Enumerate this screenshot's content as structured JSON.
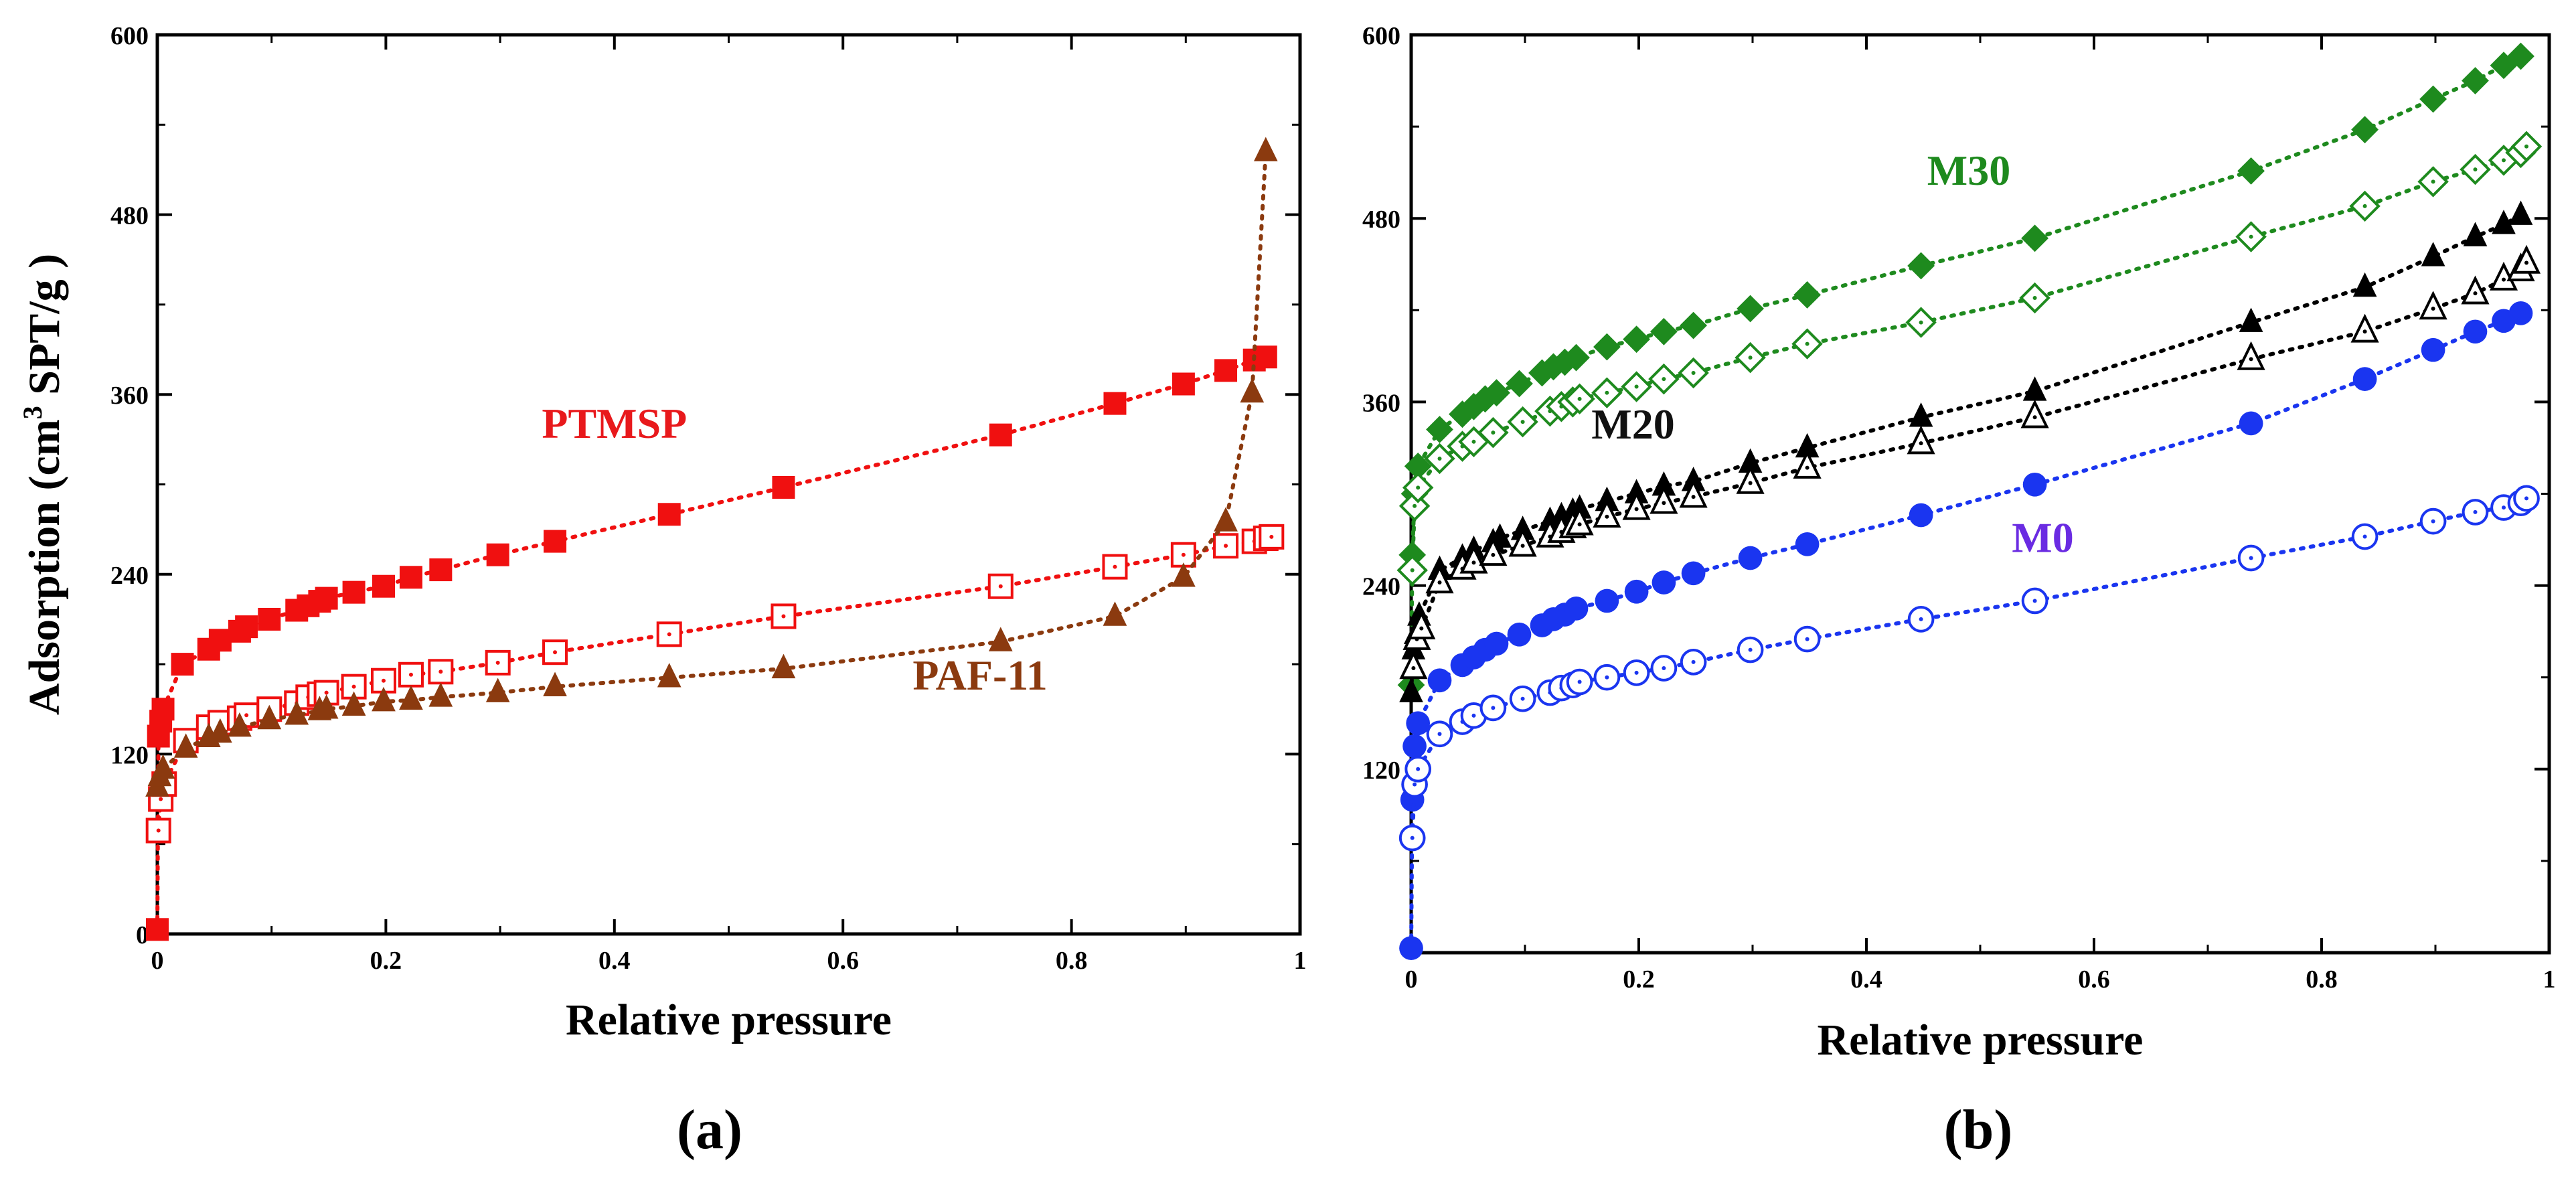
{
  "chart_data": [
    {
      "type": "scatter",
      "panel_label": "(a)",
      "xlabel": "Relative pressure",
      "ylabel_main": "Adsorption (cm",
      "ylabel_sup": "3",
      "ylabel_end": " SPT/g )",
      "xlim": [
        0,
        1
      ],
      "ylim": [
        0,
        600
      ],
      "x_ticks": [
        "0",
        "0.2",
        "0.4",
        "0.6",
        "0.8",
        "1"
      ],
      "y_ticks": [
        "0",
        "120",
        "240",
        "360",
        "480",
        "600"
      ],
      "grid": false,
      "labels": [
        {
          "text": "PTMSP",
          "color": "#e8191c",
          "x": 0.4,
          "y": 331
        },
        {
          "text": "PAF-11",
          "color": "#8b3a0f",
          "x": 0.72,
          "y": 163
        }
      ],
      "series": [
        {
          "marker": "square-filled",
          "color": "#f01010",
          "x": [
            0.0,
            0.001,
            0.003,
            0.005,
            0.022,
            0.045,
            0.055,
            0.072,
            0.078,
            0.098,
            0.122,
            0.132,
            0.142,
            0.148,
            0.172,
            0.198,
            0.222,
            0.248,
            0.298,
            0.348,
            0.448,
            0.548,
            0.738,
            0.838,
            0.898,
            0.935,
            0.96,
            0.97
          ],
          "y": [
            3,
            132,
            142,
            150,
            180,
            190,
            196,
            202,
            205,
            210,
            216,
            219,
            222,
            224,
            228,
            232,
            238,
            243,
            253,
            262,
            280,
            298,
            333,
            354,
            367,
            376,
            383,
            385
          ]
        },
        {
          "marker": "square-open",
          "color": "#f01010",
          "x": [
            0.001,
            0.003,
            0.006,
            0.025,
            0.045,
            0.055,
            0.072,
            0.078,
            0.098,
            0.122,
            0.132,
            0.142,
            0.148,
            0.172,
            0.198,
            0.222,
            0.248,
            0.298,
            0.348,
            0.448,
            0.548,
            0.738,
            0.838,
            0.898,
            0.935,
            0.96,
            0.97,
            0.975
          ],
          "y": [
            69,
            90,
            100,
            129,
            138,
            141,
            144,
            146,
            150,
            154,
            158,
            160,
            161,
            165,
            169,
            173,
            175,
            181,
            188,
            200,
            212,
            232,
            245,
            253,
            259,
            262,
            264,
            265
          ]
        },
        {
          "marker": "triangle-filled",
          "color": "#8b3a0f",
          "x": [
            0.0,
            0.002,
            0.005,
            0.025,
            0.045,
            0.055,
            0.072,
            0.098,
            0.122,
            0.142,
            0.148,
            0.172,
            0.198,
            0.222,
            0.248,
            0.298,
            0.348,
            0.448,
            0.548,
            0.738,
            0.838,
            0.898,
            0.935,
            0.958,
            0.97
          ],
          "y": [
            98,
            105,
            110,
            124,
            131,
            134,
            138,
            143,
            146,
            149,
            150,
            152,
            155,
            156,
            158,
            161,
            165,
            171,
            177,
            195,
            212,
            238,
            275,
            361,
            522
          ]
        }
      ]
    },
    {
      "type": "scatter",
      "panel_label": "(b)",
      "xlabel": "Relative pressure",
      "xlim": [
        0,
        1
      ],
      "ylim": [
        0,
        600
      ],
      "x_ticks": [
        "0",
        "0.2",
        "0.4",
        "0.6",
        "0.8",
        "1"
      ],
      "y_ticks": [
        "120",
        "240",
        "360",
        "480",
        "600"
      ],
      "grid": false,
      "labels": [
        {
          "text": "M30",
          "color": "#1e8a1e",
          "x": 0.49,
          "y": 502
        },
        {
          "text": "M20",
          "color": "#111111",
          "x": 0.195,
          "y": 336
        },
        {
          "text": "M0",
          "color": "#6a2be2",
          "x": 0.555,
          "y": 262
        }
      ],
      "series": [
        {
          "marker": "diamond-filled",
          "color": "#1e8a1e",
          "x": [
            0.0,
            0.001,
            0.003,
            0.006,
            0.025,
            0.045,
            0.055,
            0.065,
            0.075,
            0.095,
            0.115,
            0.125,
            0.135,
            0.145,
            0.172,
            0.198,
            0.222,
            0.248,
            0.298,
            0.348,
            0.448,
            0.548,
            0.738,
            0.838,
            0.898,
            0.935,
            0.96,
            0.975
          ],
          "y": [
            175,
            260,
            300,
            318,
            342,
            352,
            357,
            362,
            366,
            372,
            379,
            383,
            386,
            389,
            396,
            401,
            406,
            410,
            421,
            430,
            449,
            467,
            511,
            538,
            558,
            570,
            580,
            586
          ]
        },
        {
          "marker": "diamond-open",
          "color": "#1e8a1e",
          "x": [
            0.001,
            0.003,
            0.006,
            0.025,
            0.045,
            0.055,
            0.072,
            0.098,
            0.122,
            0.132,
            0.142,
            0.148,
            0.172,
            0.198,
            0.222,
            0.248,
            0.298,
            0.348,
            0.448,
            0.548,
            0.738,
            0.838,
            0.898,
            0.935,
            0.96,
            0.975,
            0.98
          ],
          "y": [
            250,
            292,
            304,
            323,
            331,
            334,
            340,
            347,
            354,
            357,
            360,
            362,
            366,
            370,
            375,
            379,
            389,
            398,
            412,
            428,
            468,
            488,
            504,
            512,
            518,
            523,
            527
          ]
        },
        {
          "marker": "triangle-filled",
          "color": "#000000",
          "x": [
            0.0,
            0.001,
            0.002,
            0.004,
            0.007,
            0.025,
            0.045,
            0.055,
            0.072,
            0.078,
            0.098,
            0.122,
            0.132,
            0.142,
            0.148,
            0.172,
            0.198,
            0.222,
            0.248,
            0.298,
            0.348,
            0.448,
            0.548,
            0.738,
            0.838,
            0.898,
            0.935,
            0.96,
            0.975
          ],
          "y": [
            170,
            186,
            198,
            208,
            220,
            250,
            258,
            263,
            268,
            271,
            276,
            282,
            285,
            288,
            290,
            295,
            300,
            305,
            308,
            320,
            330,
            350,
            367,
            412,
            435,
            455,
            468,
            476,
            482
          ]
        },
        {
          "marker": "triangle-open",
          "color": "#000000",
          "x": [
            0.002,
            0.005,
            0.009,
            0.025,
            0.045,
            0.055,
            0.072,
            0.098,
            0.122,
            0.132,
            0.142,
            0.148,
            0.172,
            0.198,
            0.222,
            0.248,
            0.298,
            0.348,
            0.448,
            0.548,
            0.738,
            0.838,
            0.898,
            0.935,
            0.96,
            0.975,
            0.98
          ],
          "y": [
            186,
            205,
            212,
            242,
            251,
            255,
            260,
            266,
            272,
            275,
            278,
            280,
            285,
            290,
            294,
            298,
            307,
            317,
            333,
            350,
            388,
            406,
            421,
            431,
            440,
            446,
            451
          ]
        },
        {
          "marker": "circle-filled",
          "color": "#1a35f0",
          "x": [
            0.0,
            0.001,
            0.003,
            0.006,
            0.025,
            0.045,
            0.055,
            0.065,
            0.075,
            0.095,
            0.115,
            0.125,
            0.135,
            0.145,
            0.172,
            0.198,
            0.222,
            0.248,
            0.298,
            0.348,
            0.448,
            0.548,
            0.738,
            0.838,
            0.898,
            0.935,
            0.96,
            0.975
          ],
          "y": [
            3,
            100,
            135,
            150,
            178,
            188,
            193,
            198,
            202,
            208,
            214,
            218,
            221,
            225,
            230,
            236,
            242,
            248,
            258,
            267,
            286,
            306,
            346,
            375,
            394,
            406,
            413,
            418
          ]
        },
        {
          "marker": "circle-open",
          "color": "#1a35f0",
          "x": [
            0.001,
            0.003,
            0.006,
            0.025,
            0.045,
            0.055,
            0.072,
            0.098,
            0.122,
            0.132,
            0.142,
            0.148,
            0.172,
            0.198,
            0.222,
            0.248,
            0.298,
            0.348,
            0.448,
            0.548,
            0.738,
            0.838,
            0.898,
            0.935,
            0.96,
            0.975,
            0.98
          ],
          "y": [
            75,
            110,
            120,
            143,
            151,
            155,
            160,
            166,
            170,
            173,
            175,
            177,
            180,
            183,
            186,
            190,
            198,
            205,
            218,
            230,
            258,
            272,
            282,
            288,
            291,
            294,
            297
          ]
        }
      ]
    }
  ]
}
